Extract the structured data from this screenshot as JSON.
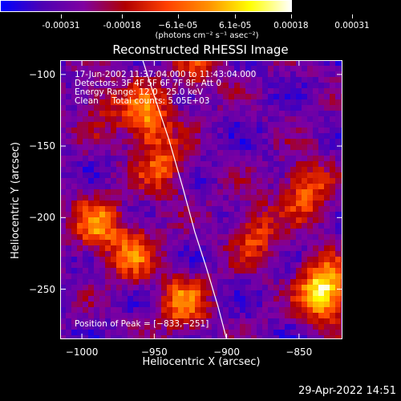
{
  "chart_data": {
    "type": "heatmap",
    "title": "Reconstructed RHESSI Image",
    "xlabel": "Heliocentric X (arcsec)",
    "ylabel": "Heliocentric Y (arcsec)",
    "xlim": [
      -1015,
      -820
    ],
    "ylim": [
      -285,
      -90
    ],
    "xticks": [
      -1000,
      -950,
      -900,
      -850
    ],
    "xtick_labels": [
      "−1000",
      "−950",
      "−900",
      "−850"
    ],
    "yticks": [
      -100,
      -150,
      -200,
      -250
    ],
    "ytick_labels": [
      "−100",
      "−150",
      "−200",
      "−250"
    ],
    "colorbar": {
      "range": [
        -0.00031,
        0.00031
      ],
      "ticks": [
        -0.00031,
        -0.00018,
        -6.1e-05,
        6.1e-05,
        0.00018,
        0.00031
      ],
      "tick_labels": [
        "-0.00031",
        "-0.00018",
        "−6.1e-05",
        "6.1e-05",
        "0.00018",
        "0.00031"
      ],
      "units_label": "(photons cm⁻² s⁻¹ asec⁻²)",
      "colormap": [
        "#0000ff",
        "#4d00b3",
        "#8000a0",
        "#b00000",
        "#ff4000",
        "#ff9000",
        "#ffff00",
        "#ffffff"
      ]
    },
    "annotations": [
      "17-Jun-2002 11:37:04.000 to 11:43:04.000",
      "Detectors: 3F 4F 5F 6F 7F 8F, Att 0",
      "Energy Range: 12.0 - 25.0 keV",
      "Clean     Total counts: 5.05E+03"
    ],
    "peak_label": "Position of Peak = [−833,−251]",
    "peak": [
      -833,
      -251
    ],
    "limb_curve": {
      "x": [
        -958,
        -950,
        -940,
        -930,
        -922,
        -914,
        -906,
        -900
      ],
      "y": [
        -90,
        -115,
        -145,
        -180,
        -210,
        -235,
        -262,
        -285
      ]
    },
    "hot_spots": [
      {
        "x": -955,
        "y": -130,
        "amp": 0.65
      },
      {
        "x": -945,
        "y": -165,
        "amp": 0.45
      },
      {
        "x": -990,
        "y": -205,
        "amp": 0.55
      },
      {
        "x": -965,
        "y": -225,
        "amp": 0.5
      },
      {
        "x": -930,
        "y": -260,
        "amp": 0.55
      },
      {
        "x": -880,
        "y": -210,
        "amp": 0.45
      },
      {
        "x": -845,
        "y": -180,
        "amp": 0.55
      },
      {
        "x": -833,
        "y": -251,
        "amp": 1.0
      },
      {
        "x": -920,
        "y": -95,
        "amp": 0.35
      },
      {
        "x": -985,
        "y": -120,
        "amp": 0.3
      }
    ]
  },
  "footer": {
    "timestamp": "29-Apr-2022 14:51"
  }
}
